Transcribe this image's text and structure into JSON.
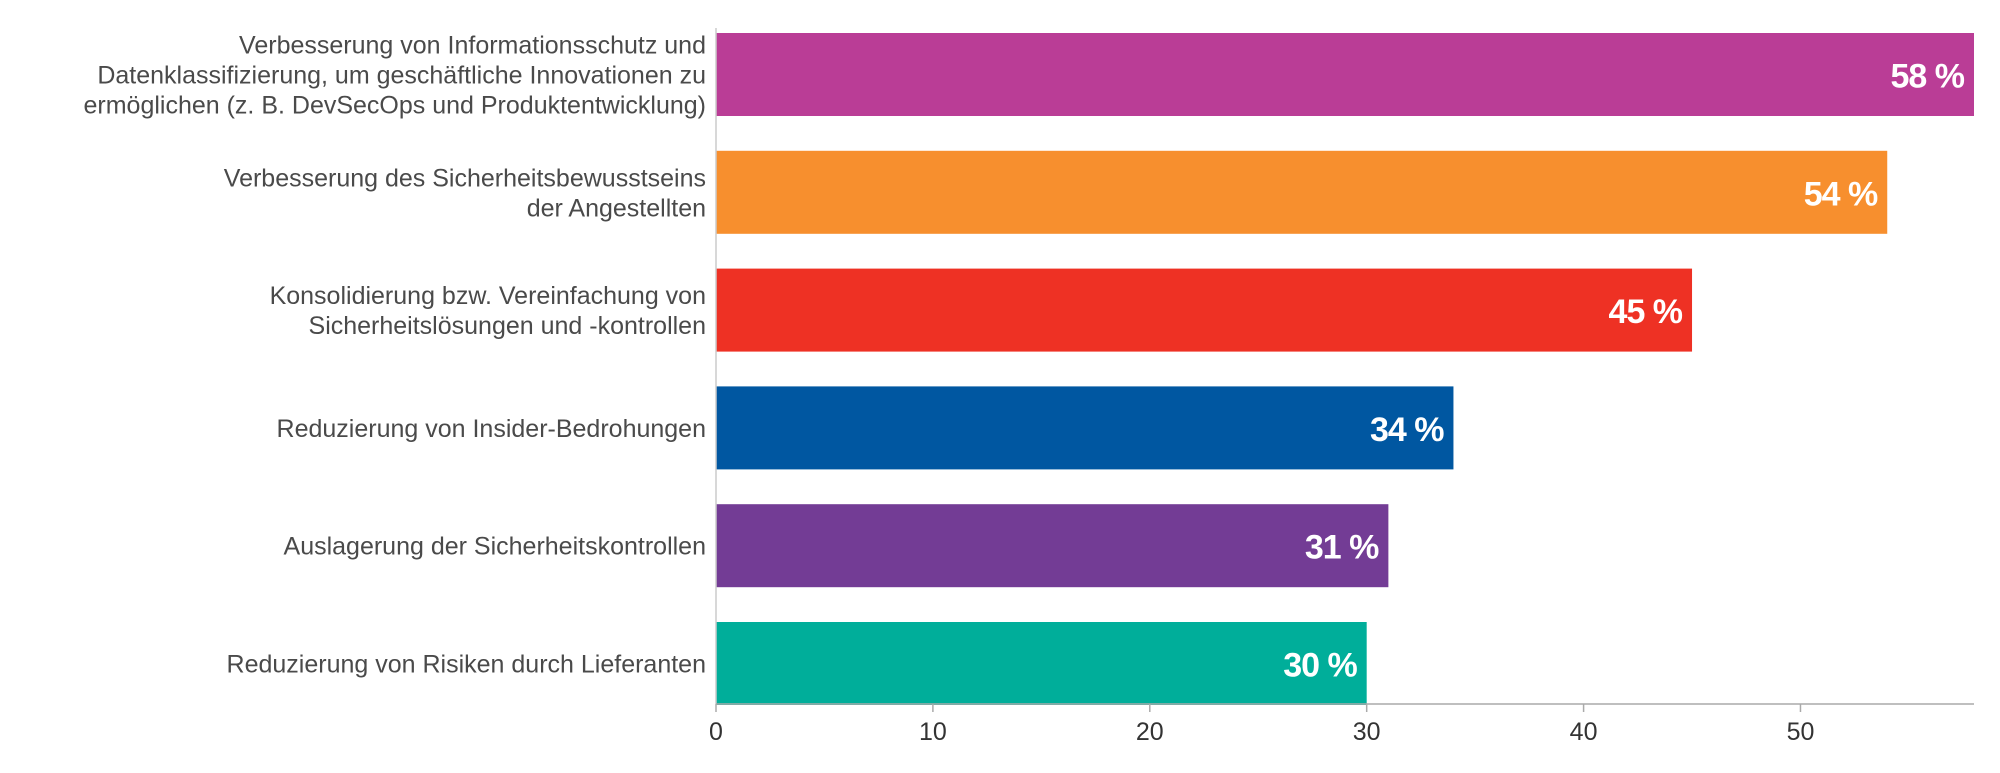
{
  "chart_data": {
    "type": "bar",
    "orientation": "horizontal",
    "categories": [
      [
        "Verbesserung von Informationsschutz und",
        "Datenklassifizierung, um geschäftliche Innovationen zu",
        "ermöglichen (z.  B. DevSecOps und Produktentwicklung)"
      ],
      [
        "Verbesserung des Sicherheitsbewusstseins",
        "der Angestellten"
      ],
      [
        "Konsolidierung bzw. Vereinfachung von",
        "Sicherheitslösungen und -kontrollen"
      ],
      [
        "Reduzierung von Insider-Bedrohungen"
      ],
      [
        "Auslagerung der Sicherheitskontrollen"
      ],
      [
        "Reduzierung von Risiken durch Lieferanten"
      ]
    ],
    "values": [
      58,
      54,
      45,
      34,
      31,
      30
    ],
    "value_labels": [
      "58 %",
      "54 %",
      "45 %",
      "34 %",
      "31 %",
      "30 %"
    ],
    "colors": [
      "#BA3D96",
      "#F78F2E",
      "#EE3124",
      "#0057A1",
      "#733C95",
      "#00AE9A"
    ],
    "xlim": [
      0,
      58
    ],
    "xticks": [
      0,
      10,
      20,
      30,
      40,
      50
    ],
    "xtick_labels": [
      "0",
      "10",
      "20",
      "30",
      "40",
      "50"
    ],
    "grid": false,
    "legend": "none"
  }
}
